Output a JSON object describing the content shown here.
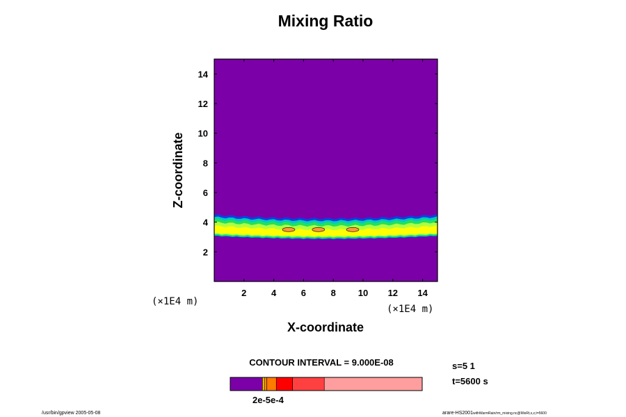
{
  "chart_data": {
    "type": "heatmap",
    "title": "Mixing Ratio",
    "xlabel": "X-coordinate",
    "ylabel": "Z-coordinate",
    "x_unit": "(×1E4 m)",
    "y_unit": "(×1E4 m)",
    "xlim": [
      0,
      15
    ],
    "ylim": [
      0,
      15
    ],
    "x_ticks": [
      2,
      4,
      6,
      8,
      10,
      12,
      14
    ],
    "y_ticks": [
      2,
      4,
      6,
      8,
      10,
      12,
      14
    ],
    "contour_interval": "CONTOUR INTERVAL = 9.000E-08",
    "layer": {
      "outer_top_z": 4.5,
      "outer_bottom_z": 2.8,
      "core_top_z": 4.0,
      "core_bottom_z": 2.9,
      "max_patches_x": [
        5.0,
        7.0,
        9.3
      ],
      "max_patch_z": 3.5
    },
    "levels_colors": [
      "#7b00a8",
      "#ffd700",
      "#ff8c00",
      "#ff7a00",
      "#ff0000",
      "#ff4040",
      "#ff9e9e"
    ],
    "field_colors": {
      "background": "#7b00a8",
      "blue": "#0f3fe0",
      "cyan": "#00c8c8",
      "green": "#20e060",
      "lime": "#b0ff40",
      "yellow": "#ffff00",
      "orange": "#ff9a3c"
    },
    "colorbar_label": "2e-5e-4"
  },
  "run_info": {
    "s": "s=5 1",
    "t": "t=5600 s"
  },
  "footer": {
    "left": "/usr/bin/gpview 2005-05-08",
    "right_main": "arare-HS2001",
    "right_small": "withWarmRain/rm_mixing.nc@MixRt,x,z,t=5600"
  }
}
